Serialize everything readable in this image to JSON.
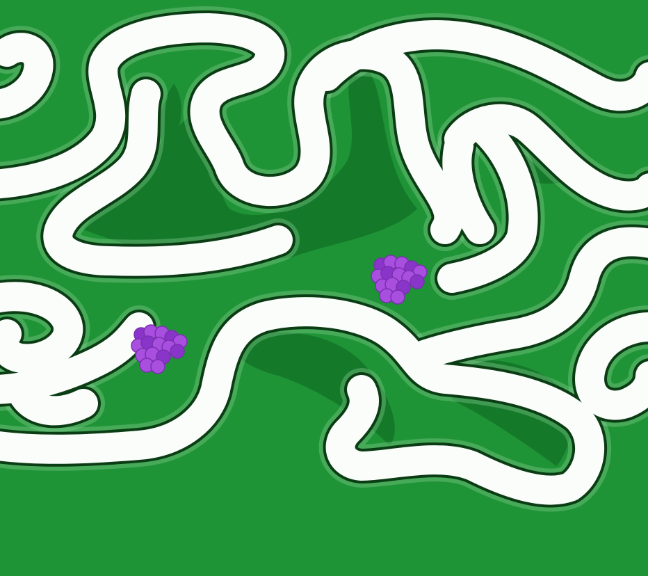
{
  "game": {
    "board": "maze",
    "colors": {
      "background": "#1f9436",
      "background_dark": "#147a2a",
      "path": "#fbfdfb",
      "path_outline": "#0b3d14",
      "grape": "#a84fe0",
      "grape_shade": "#8a35c9"
    },
    "items": [
      {
        "icon": "grape-cluster-icon",
        "count": 1
      },
      {
        "icon": "grape-cluster-icon",
        "count": 1
      }
    ]
  }
}
